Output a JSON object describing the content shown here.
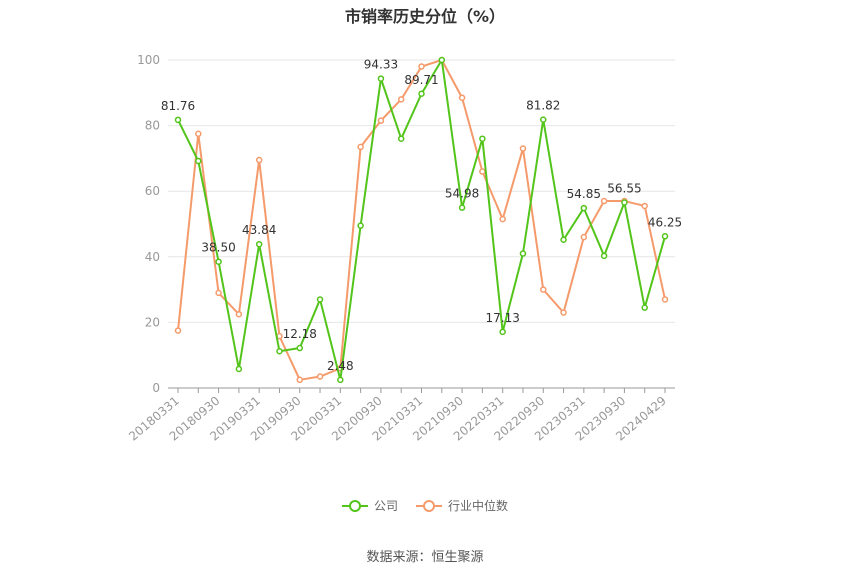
{
  "chart_data": {
    "type": "line",
    "title": "市销率历史分位（%）",
    "xlabel": "",
    "ylabel": "",
    "ylim": [
      0,
      100
    ],
    "yticks": [
      0,
      20,
      40,
      60,
      80,
      100
    ],
    "grid": true,
    "legend_position": "bottom",
    "x": [
      "20180331",
      "20180630",
      "20180930",
      "20181231",
      "20190331",
      "20190630",
      "20190930",
      "20191231",
      "20200331",
      "20200630",
      "20200930",
      "20201231",
      "20210331",
      "20210630",
      "20210930",
      "20211231",
      "20220331",
      "20220630",
      "20220930",
      "20221231",
      "20230331",
      "20230630",
      "20230930",
      "20231231",
      "20240429"
    ],
    "xtick_labels": [
      "20180331",
      "20180930",
      "20190331",
      "20190930",
      "20200331",
      "20200930",
      "20210331",
      "20210930",
      "20220331",
      "20220930",
      "20230331",
      "20230930",
      "20240429"
    ],
    "series": [
      {
        "name": "公司",
        "color": "#52c41a",
        "values": [
          81.76,
          69.2,
          38.5,
          5.8,
          43.84,
          11.2,
          12.18,
          27.0,
          2.48,
          49.5,
          94.33,
          76.0,
          89.71,
          100,
          54.98,
          76.0,
          17.13,
          41.0,
          81.82,
          45.2,
          54.85,
          40.3,
          56.55,
          24.5,
          46.25
        ],
        "labels": {
          "0": "81.76",
          "2": "38.50",
          "4": "43.84",
          "6": "12.18",
          "8": "2.48",
          "10": "94.33",
          "12": "89.71",
          "14": "54.98",
          "16": "17.13",
          "18": "81.82",
          "20": "54.85",
          "22": "56.55",
          "24": "46.25"
        }
      },
      {
        "name": "行业中位数",
        "color": "#f59a6b",
        "values": [
          17.5,
          77.5,
          29.0,
          22.5,
          69.5,
          15.8,
          2.5,
          3.5,
          6.0,
          73.5,
          81.5,
          88.0,
          98.0,
          100,
          88.5,
          66.0,
          51.5,
          73.0,
          30.0,
          23.0,
          46.0,
          57.0,
          57.0,
          55.5,
          27.0
        ]
      }
    ]
  },
  "source": "数据来源：恒生聚源"
}
